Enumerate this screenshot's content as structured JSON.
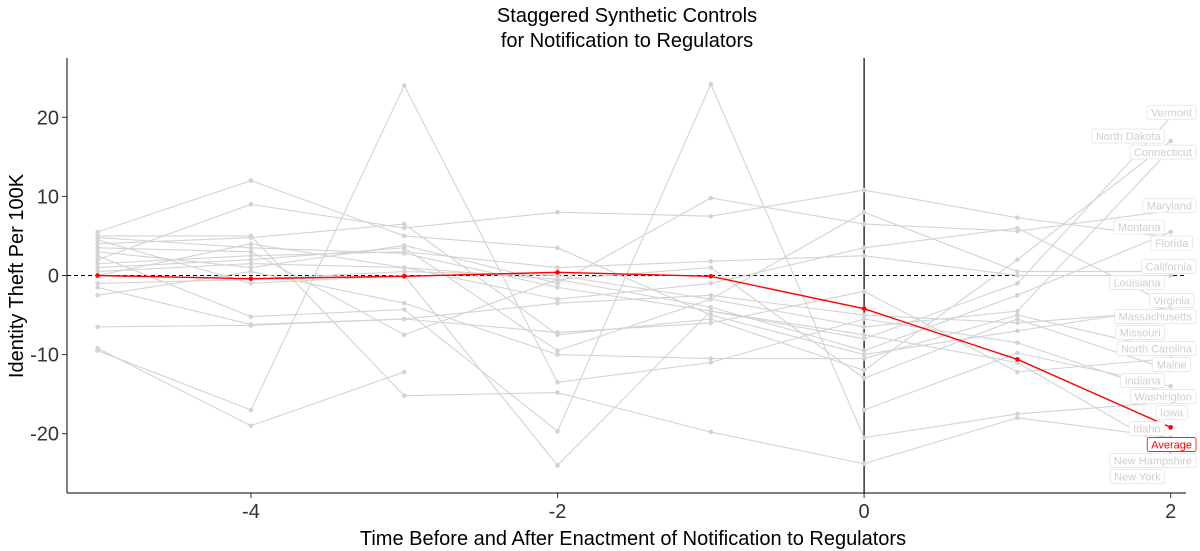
{
  "chart_data": {
    "type": "line",
    "title": [
      "Staggered Synthetic Controls",
      "for Notification to Regulators"
    ],
    "xlabel": "Time Before and After Enactment of Notification to Regulators",
    "ylabel": "Identity Theft Per 100K",
    "xlim": [
      -5.2,
      2.1
    ],
    "ylim": [
      -27.5,
      27.5
    ],
    "x_ticks": [
      -4,
      -2,
      0,
      2
    ],
    "y_ticks": [
      -20,
      -10,
      0,
      10,
      20
    ],
    "x_tick_labels": [
      "-4",
      "-2",
      "0",
      "2"
    ],
    "y_tick_labels": [
      "-20",
      "-10",
      "0",
      "10",
      "20"
    ],
    "reference_hline": 0,
    "reference_vline": 0,
    "colors": {
      "states": "#d3d3d3",
      "average": "#ff0000",
      "axis": "#000000"
    },
    "series": [
      {
        "name": "Vermont",
        "x": [
          -5,
          -4,
          -3,
          -2,
          -1,
          0,
          1,
          2
        ],
        "values": [
          4.8,
          3.5,
          2.8,
          -1.5,
          -4.5,
          -8.0,
          -1.0,
          20.0
        ]
      },
      {
        "name": "North Dakota",
        "x": [
          -5,
          -4,
          -3,
          -2,
          -1,
          0,
          1,
          2
        ],
        "values": [
          4.0,
          4.8,
          6.5,
          -7.5,
          -5.5,
          -12.0,
          2.0,
          17.0
        ]
      },
      {
        "name": "Connecticut",
        "x": [
          -5,
          -4,
          -3,
          -2,
          -1,
          0,
          1,
          2
        ],
        "values": [
          1.0,
          2.0,
          3.5,
          -9.5,
          -3.0,
          -6.5,
          -4.5,
          16.0
        ]
      },
      {
        "name": "Florida",
        "x": [
          -5,
          -4,
          -3,
          -2,
          -1,
          0,
          1,
          2
        ],
        "values": [
          2.0,
          9.0,
          6.0,
          8.0,
          7.5,
          10.8,
          7.3,
          4.8
        ]
      },
      {
        "name": "Maryland",
        "x": [
          -5,
          -4,
          -3,
          -2,
          -1,
          0,
          1,
          2
        ],
        "values": [
          3.0,
          1.0,
          3.8,
          -1.0,
          9.8,
          6.5,
          5.6,
          8.2
        ]
      },
      {
        "name": "Montana",
        "x": [
          -5,
          -4,
          -3,
          -2,
          -1,
          0,
          1,
          2
        ],
        "values": [
          0.0,
          4.0,
          1.0,
          -0.5,
          -4.0,
          -9.5,
          -2.5,
          5.5
        ]
      },
      {
        "name": "California",
        "x": [
          -5,
          -4,
          -3,
          -2,
          -1,
          0,
          1,
          2
        ],
        "values": [
          -1.0,
          -0.5,
          0.5,
          0.0,
          -3.0,
          8.0,
          0.5,
          0.5
        ]
      },
      {
        "name": "Louisiana",
        "x": [
          -5,
          -4,
          -3,
          -2,
          -1,
          0,
          1,
          2
        ],
        "values": [
          1.5,
          2.5,
          3.0,
          1.0,
          1.8,
          2.5,
          0.0,
          0.0
        ]
      },
      {
        "name": "Massachusetts",
        "x": [
          -5,
          -4,
          -3,
          -2,
          -1,
          0,
          1,
          2
        ],
        "values": [
          5.5,
          12.0,
          5.0,
          3.5,
          -5.0,
          -10.0,
          -7.0,
          -4.0
        ]
      },
      {
        "name": "Virginia",
        "x": [
          -5,
          -4,
          -3,
          -2,
          -1,
          0,
          1,
          2
        ],
        "values": [
          0.5,
          1.5,
          1.0,
          -3.0,
          -1.0,
          3.5,
          6.0,
          -3.8
        ]
      },
      {
        "name": "Missouri",
        "x": [
          -5,
          -4,
          -3,
          -2,
          -1,
          0,
          1,
          2
        ],
        "values": [
          -1.5,
          -6.2,
          -5.5,
          -3.5,
          -2.5,
          -5.0,
          -6.0,
          -4.5
        ]
      },
      {
        "name": "North Carolina",
        "x": [
          -5,
          -4,
          -3,
          -2,
          -1,
          0,
          1,
          2
        ],
        "values": [
          -2.5,
          0.5,
          -3.5,
          -10.0,
          -10.5,
          -10.5,
          -5.0,
          -9.5
        ]
      },
      {
        "name": "Maine",
        "x": [
          -5,
          -4,
          -3,
          -2,
          -1,
          0,
          1,
          2
        ],
        "values": [
          -6.5,
          -6.3,
          -5.5,
          -7.2,
          -6.0,
          -2.0,
          -12.2,
          -10.5
        ]
      },
      {
        "name": "Indiana",
        "x": [
          -5,
          -4,
          -3,
          -2,
          -1,
          0,
          1,
          2
        ],
        "values": [
          3.5,
          3.0,
          -7.5,
          -0.5,
          1.0,
          -13.0,
          -5.5,
          -12.0
        ]
      },
      {
        "name": "Iowa",
        "x": [
          -5,
          -4,
          -3,
          -2,
          -1,
          0,
          1,
          2
        ],
        "values": [
          -9.5,
          -17.0,
          24.0,
          -13.5,
          -11.0,
          -5.5,
          -8.5,
          -15.0
        ]
      },
      {
        "name": "Washington",
        "x": [
          -5,
          -4,
          -3,
          -2,
          -1,
          0,
          1,
          2
        ],
        "values": [
          -9.2,
          -19.0,
          -12.2,
          null,
          null,
          -17.0,
          -9.8,
          -14.0
        ]
      },
      {
        "name": "Idaho",
        "x": [
          -5,
          -4,
          -3,
          -2,
          -1,
          0,
          1,
          2
        ],
        "values": [
          2.5,
          -5.2,
          -4.3,
          -19.7,
          24.2,
          -20.5,
          -17.5,
          -16.0
        ]
      },
      {
        "name": "New Hampshire",
        "x": [
          -5,
          -4,
          -3,
          -2,
          -1,
          0,
          1,
          2
        ],
        "values": [
          5.0,
          5.0,
          -15.2,
          -14.8,
          -19.8,
          -23.8,
          -18.0,
          -20.5
        ]
      },
      {
        "name": "New York",
        "x": [
          -5,
          -4,
          -3,
          -2,
          -1,
          0,
          1,
          2
        ],
        "values": [
          4.5,
          -1.0,
          0.0,
          -24.0,
          -4.5,
          -7.5,
          -11.0,
          -22.2
        ]
      },
      {
        "name": "Average",
        "x": [
          -5,
          -4,
          -3,
          -2,
          -1,
          0,
          1,
          2
        ],
        "values": [
          0.0,
          -0.4,
          -0.1,
          0.4,
          -0.1,
          -4.2,
          -10.6,
          -19.2
        ]
      }
    ]
  }
}
